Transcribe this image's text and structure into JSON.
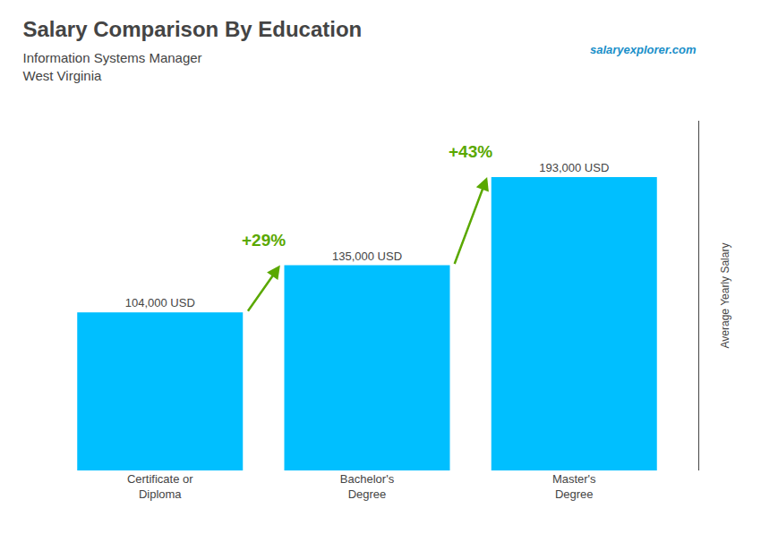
{
  "chart_data": {
    "type": "bar",
    "title": "Salary Comparison By Education",
    "subtitle": [
      "Information Systems Manager",
      "West Virginia"
    ],
    "y_label": "Average Yearly Salary",
    "categories": [
      "Certificate or\nDiploma",
      "Bachelor's\nDegree",
      "Master's\nDegree"
    ],
    "values": [
      104000,
      135000,
      193000
    ],
    "value_labels": [
      "104,000 USD",
      "135,000 USD",
      "193,000 USD"
    ],
    "data_labels": true,
    "annotations": [
      "+29%",
      "+43%",
      "salaryexplorer.com"
    ],
    "color": "#00BFFF",
    "ylim": [
      0,
      230000
    ],
    "tick_labels": "x",
    "grid": false
  }
}
